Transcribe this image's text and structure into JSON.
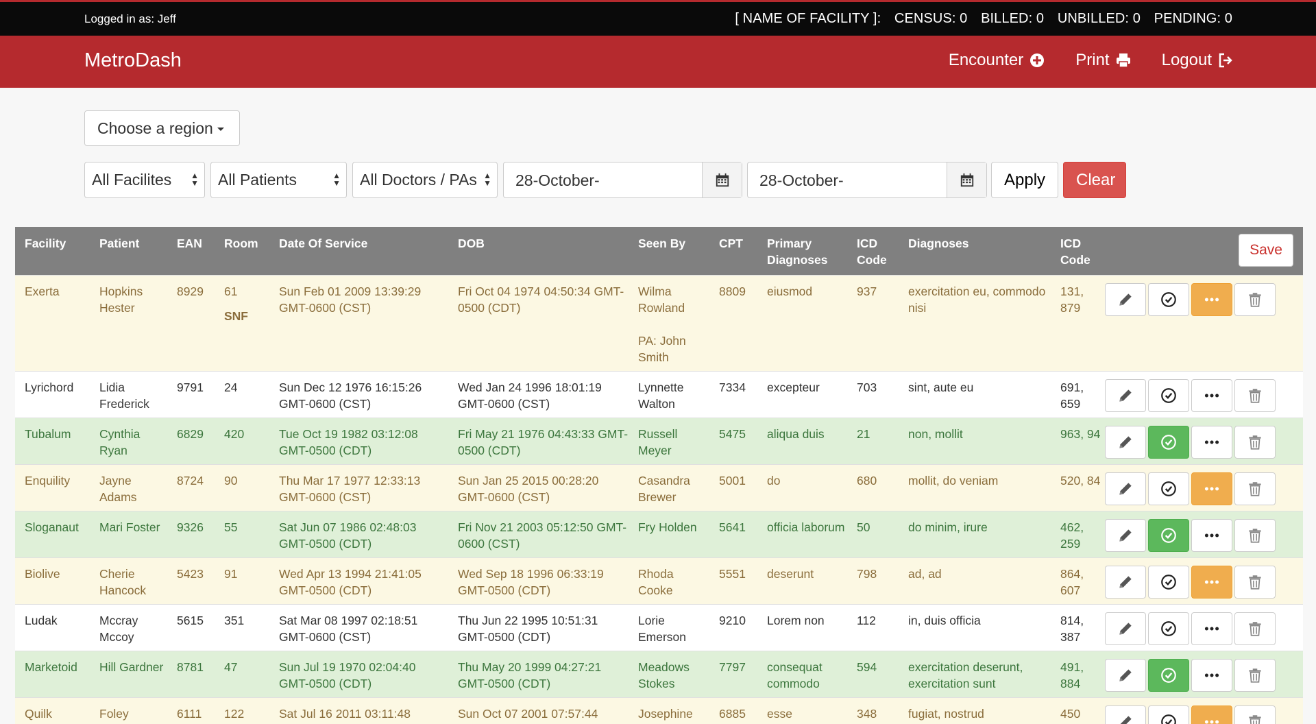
{
  "topbar": {
    "logged_in": "Logged in as: Jeff",
    "facility": "[ NAME OF FACILITY ]:",
    "census": "CENSUS: 0",
    "billed": "BILLED: 0",
    "unbilled": "UNBILLED: 0",
    "pending": "PENDING: 0"
  },
  "nav": {
    "brand": "MetroDash",
    "encounter": "Encounter",
    "print": "Print",
    "logout": "Logout"
  },
  "filters": {
    "region": "Choose a region",
    "facilities": "All Facilites",
    "patients": "All Patients",
    "doctors": "All Doctors / PAs",
    "date_from": "28-October-",
    "date_to": "28-October-",
    "apply": "Apply",
    "clear": "Clear"
  },
  "colors": {
    "brand_red": "#b52a2e",
    "row_yellow": "#fcf8e3",
    "row_green": "#dff0d8",
    "btn_green": "#5cb85c",
    "btn_orange": "#f0ad4e",
    "btn_red": "#d9534f"
  },
  "table": {
    "headers": {
      "facility": "Facility",
      "patient": "Patient",
      "ean": "EAN",
      "room": "Room",
      "dos": "Date Of Service",
      "dob": "DOB",
      "seen_by": "Seen By",
      "cpt": "CPT",
      "primary": "Primary Diagnoses",
      "icd": "ICD Code",
      "diagnoses": "Diagnoses",
      "icd2": "ICD Code",
      "save": "Save"
    },
    "rows": [
      {
        "style": "yellow",
        "facility": "Exerta",
        "patient": "Hopkins Hester",
        "ean": "8929",
        "room": "61",
        "room_note": "SNF",
        "dos": "Sun Feb 01 2009 13:39:29 GMT-0600 (CST)",
        "dob": "Fri Oct 04 1974 04:50:34 GMT-0500 (CDT)",
        "seen_by": "Wilma Rowland",
        "pa": "PA: John Smith",
        "cpt": "8809",
        "primary": "eiusmod",
        "icd": "937",
        "diagnoses": "exercitation eu, commodo nisi",
        "icd2": "131, 879",
        "status_icon": "check-circle",
        "done": false,
        "more_flag": true
      },
      {
        "style": "white",
        "facility": "Lyrichord",
        "patient": "Lidia Frederick",
        "ean": "9791",
        "room": "24",
        "room_note": "",
        "dos": "Sun Dec 12 1976 16:15:26 GMT-0600 (CST)",
        "dob": "Wed Jan 24 1996 18:01:19 GMT-0600 (CST)",
        "seen_by": "Lynnette Walton",
        "pa": "",
        "cpt": "7334",
        "primary": "excepteur",
        "icd": "703",
        "diagnoses": "sint, aute eu",
        "icd2": "691, 659",
        "done": false,
        "more_flag": false
      },
      {
        "style": "green",
        "facility": "Tubalum",
        "patient": "Cynthia Ryan",
        "ean": "6829",
        "room": "420",
        "room_note": "",
        "dos": "Tue Oct 19 1982 03:12:08 GMT-0500 (CDT)",
        "dob": "Fri May 21 1976 04:43:33 GMT-0500 (CDT)",
        "seen_by": "Russell Meyer",
        "pa": "",
        "cpt": "5475",
        "primary": "aliqua duis",
        "icd": "21",
        "diagnoses": "non, mollit",
        "icd2": "963, 94",
        "done": true,
        "more_flag": false
      },
      {
        "style": "yellow",
        "facility": "Enquility",
        "patient": "Jayne Adams",
        "ean": "8724",
        "room": "90",
        "room_note": "",
        "dos": "Thu Mar 17 1977 12:33:13 GMT-0600 (CST)",
        "dob": "Sun Jan 25 2015 00:28:20 GMT-0600 (CST)",
        "seen_by": "Casandra Brewer",
        "pa": "",
        "cpt": "5001",
        "primary": "do",
        "icd": "680",
        "diagnoses": "mollit, do veniam",
        "icd2": "520, 84",
        "done": false,
        "more_flag": true
      },
      {
        "style": "green",
        "facility": "Sloganaut",
        "patient": "Mari Foster",
        "ean": "9326",
        "room": "55",
        "room_note": "",
        "dos": "Sat Jun 07 1986 02:48:03 GMT-0500 (CDT)",
        "dob": "Fri Nov 21 2003 05:12:50 GMT-0600 (CST)",
        "seen_by": "Fry Holden",
        "pa": "",
        "cpt": "5641",
        "primary": "officia laborum",
        "icd": "50",
        "diagnoses": "do minim, irure",
        "icd2": "462, 259",
        "done": true,
        "more_flag": false
      },
      {
        "style": "yellow",
        "facility": "Biolive",
        "patient": "Cherie Hancock",
        "ean": "5423",
        "room": "91",
        "room_note": "",
        "dos": "Wed Apr 13 1994 21:41:05 GMT-0500 (CDT)",
        "dob": "Wed Sep 18 1996 06:33:19 GMT-0500 (CDT)",
        "seen_by": "Rhoda Cooke",
        "pa": "",
        "cpt": "5551",
        "primary": "deserunt",
        "icd": "798",
        "diagnoses": "ad, ad",
        "icd2": "864, 607",
        "done": false,
        "more_flag": true
      },
      {
        "style": "white",
        "facility": "Ludak",
        "patient": "Mccray Mccoy",
        "ean": "5615",
        "room": "351",
        "room_note": "",
        "dos": "Sat Mar 08 1997 02:18:51 GMT-0600 (CST)",
        "dob": "Thu Jun 22 1995 10:51:31 GMT-0500 (CDT)",
        "seen_by": "Lorie Emerson",
        "pa": "",
        "cpt": "9210",
        "primary": "Lorem non",
        "icd": "112",
        "diagnoses": "in, duis officia",
        "icd2": "814, 387",
        "done": false,
        "more_flag": false
      },
      {
        "style": "green",
        "facility": "Marketoid",
        "patient": "Hill Gardner",
        "ean": "8781",
        "room": "47",
        "room_note": "",
        "dos": "Sun Jul 19 1970 02:04:40 GMT-0500 (CDT)",
        "dob": "Thu May 20 1999 04:27:21 GMT-0500 (CDT)",
        "seen_by": "Meadows Stokes",
        "pa": "",
        "cpt": "7797",
        "primary": "consequat commodo",
        "icd": "594",
        "diagnoses": "exercitation deserunt, exercitation sunt",
        "icd2": "491, 884",
        "done": true,
        "more_flag": false
      },
      {
        "style": "yellow",
        "facility": "Quilk",
        "patient": "Foley",
        "ean": "6111",
        "room": "122",
        "room_note": "",
        "dos": "Sat Jul 16 2011 03:11:48",
        "dob": "Sun Oct 07 2001 07:57:44",
        "seen_by": "Josephine",
        "pa": "",
        "cpt": "6885",
        "primary": "esse",
        "icd": "348",
        "diagnoses": "fugiat, nostrud",
        "icd2": "450",
        "done": false,
        "more_flag": true
      }
    ]
  }
}
